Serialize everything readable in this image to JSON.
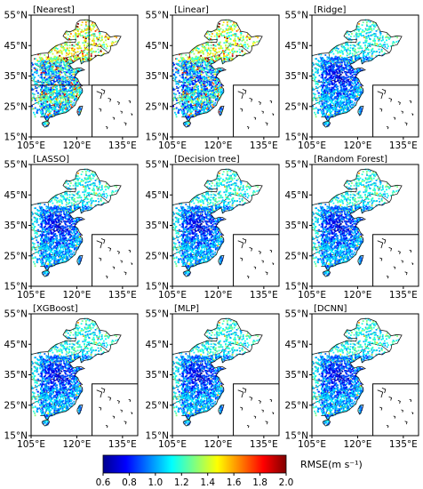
{
  "panels": [
    {
      "title": "[Nearest]",
      "style": "nearest"
    },
    {
      "title": "[Linear]",
      "style": "linear"
    },
    {
      "title": "[Ridge]",
      "style": "ml"
    },
    {
      "title": "[LASSO]",
      "style": "ml"
    },
    {
      "title": "[Decision tree]",
      "style": "ml"
    },
    {
      "title": "[Random Forest]",
      "style": "ml"
    },
    {
      "title": "[XGBoost]",
      "style": "ml"
    },
    {
      "title": "[MLP]",
      "style": "ml"
    },
    {
      "title": "[DCNN]",
      "style": "ml"
    }
  ],
  "axes": {
    "x_ticks": [
      {
        "value": 105,
        "label": "105°E"
      },
      {
        "value": 120,
        "label": "120°E"
      },
      {
        "value": 135,
        "label": "135°E"
      }
    ],
    "y_ticks": [
      {
        "value": 55,
        "label": "55°N"
      },
      {
        "value": 45,
        "label": "45°N"
      },
      {
        "value": 35,
        "label": "35°N"
      },
      {
        "value": 25,
        "label": "25°N"
      },
      {
        "value": 15,
        "label": "15°N"
      }
    ],
    "lon_range": [
      105,
      140
    ],
    "lat_range": [
      15,
      55
    ]
  },
  "colorbar": {
    "title": "RMSE(m s⁻¹)",
    "min": 0.6,
    "max": 2.0,
    "ticks": [
      "0.6",
      "0.8",
      "1.0",
      "1.2",
      "1.4",
      "1.6",
      "1.8",
      "2.0"
    ],
    "colormap": "jet",
    "colors": [
      "#00008f",
      "#0000ff",
      "#0080ff",
      "#00ffff",
      "#80ff80",
      "#ffff00",
      "#ff8000",
      "#ff0000",
      "#800000"
    ]
  }
}
